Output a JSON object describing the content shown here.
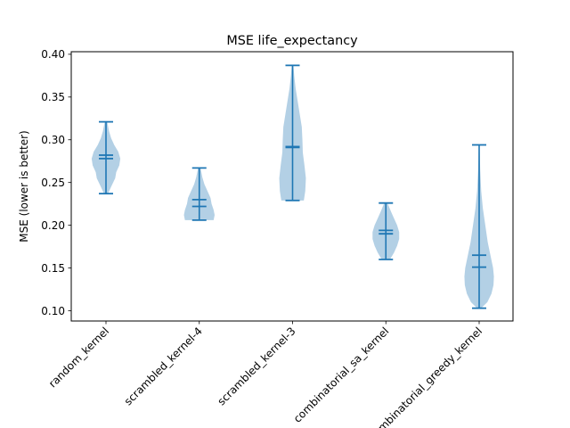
{
  "chart_data": {
    "type": "violin",
    "title": "MSE life_expectancy",
    "xlabel": "",
    "ylabel": "MSE (lower is better)",
    "ylim": [
      0.088,
      0.403
    ],
    "yticks": [
      0.1,
      0.15,
      0.2,
      0.25,
      0.3,
      0.35,
      0.4
    ],
    "ytick_labels": [
      "0.10",
      "0.15",
      "0.20",
      "0.25",
      "0.30",
      "0.35",
      "0.40"
    ],
    "categories": [
      "random_kernel",
      "scrambled_kernel-4",
      "scrambled_kernel-3",
      "combinatorial_sa_kernel",
      "combinatorial_greedy_kernel"
    ],
    "series": [
      {
        "category": "random_kernel",
        "min": 0.237,
        "max": 0.321,
        "mean": 0.282,
        "median": 0.278,
        "profile": [
          [
            0.237,
            0.1
          ],
          [
            0.245,
            0.25
          ],
          [
            0.255,
            0.45
          ],
          [
            0.262,
            0.5
          ],
          [
            0.27,
            0.65
          ],
          [
            0.278,
            0.7
          ],
          [
            0.286,
            0.6
          ],
          [
            0.294,
            0.4
          ],
          [
            0.302,
            0.25
          ],
          [
            0.31,
            0.15
          ],
          [
            0.321,
            0.06
          ]
        ]
      },
      {
        "category": "scrambled_kernel-4",
        "min": 0.206,
        "max": 0.267,
        "mean": 0.23,
        "median": 0.222,
        "profile": [
          [
            0.206,
            0.7
          ],
          [
            0.212,
            0.75
          ],
          [
            0.218,
            0.7
          ],
          [
            0.225,
            0.6
          ],
          [
            0.232,
            0.55
          ],
          [
            0.24,
            0.4
          ],
          [
            0.248,
            0.25
          ],
          [
            0.256,
            0.15
          ],
          [
            0.267,
            0.06
          ]
        ]
      },
      {
        "category": "scrambled_kernel-3",
        "min": 0.229,
        "max": 0.387,
        "mean": 0.292,
        "median": 0.291,
        "profile": [
          [
            0.229,
            0.55
          ],
          [
            0.24,
            0.62
          ],
          [
            0.255,
            0.65
          ],
          [
            0.27,
            0.58
          ],
          [
            0.285,
            0.5
          ],
          [
            0.3,
            0.48
          ],
          [
            0.315,
            0.45
          ],
          [
            0.33,
            0.35
          ],
          [
            0.345,
            0.25
          ],
          [
            0.36,
            0.15
          ],
          [
            0.375,
            0.08
          ],
          [
            0.387,
            0.04
          ]
        ]
      },
      {
        "category": "combinatorial_sa_kernel",
        "min": 0.16,
        "max": 0.226,
        "mean": 0.194,
        "median": 0.19,
        "profile": [
          [
            0.16,
            0.2
          ],
          [
            0.168,
            0.4
          ],
          [
            0.176,
            0.55
          ],
          [
            0.184,
            0.65
          ],
          [
            0.192,
            0.65
          ],
          [
            0.2,
            0.55
          ],
          [
            0.208,
            0.4
          ],
          [
            0.216,
            0.25
          ],
          [
            0.226,
            0.08
          ]
        ]
      },
      {
        "category": "combinatorial_greedy_kernel",
        "min": 0.103,
        "max": 0.294,
        "mean": 0.165,
        "median": 0.151,
        "profile": [
          [
            0.103,
            0.1
          ],
          [
            0.11,
            0.4
          ],
          [
            0.12,
            0.6
          ],
          [
            0.13,
            0.7
          ],
          [
            0.14,
            0.72
          ],
          [
            0.15,
            0.68
          ],
          [
            0.165,
            0.55
          ],
          [
            0.18,
            0.42
          ],
          [
            0.2,
            0.3
          ],
          [
            0.22,
            0.18
          ],
          [
            0.24,
            0.1
          ],
          [
            0.265,
            0.05
          ],
          [
            0.294,
            0.02
          ]
        ]
      }
    ],
    "fill_color": "#a6c8e1",
    "line_color": "#1f77b4"
  }
}
